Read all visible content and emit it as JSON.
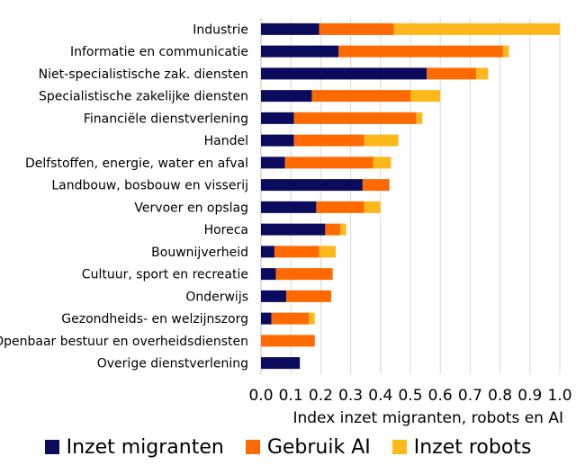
{
  "chart_data": {
    "type": "bar",
    "orientation": "horizontal",
    "stacked": true,
    "xlabel": "Index inzet migranten, robots en AI",
    "xlim": [
      0,
      1.0
    ],
    "xticks": [
      "0.0",
      "0.1",
      "0.2",
      "0.3",
      "0.4",
      "0.5",
      "0.6",
      "0.7",
      "0.8",
      "0.9",
      "1.0"
    ],
    "grid": true,
    "legend_position": "bottom",
    "categories": [
      "Industrie",
      "Informatie en communicatie",
      "Niet-specialistische zak. diensten",
      "Specialistische zakelijke diensten",
      "Financiële dienstverlening",
      "Handel",
      "Delfstoffen, energie, water en afval",
      "Landbouw, bosbouw en visserij",
      "Vervoer en opslag",
      "Horeca",
      "Bouwnijverheid",
      "Cultuur, sport en recreatie",
      "Onderwijs",
      "Gezondheids- en welzijnszorg",
      "Openbaar bestuur en overheidsdiensten",
      "Overige dienstverlening"
    ],
    "series": [
      {
        "name": "Inzet migranten",
        "color": "#0b0b5e",
        "values": [
          0.195,
          0.26,
          0.555,
          0.17,
          0.11,
          0.11,
          0.08,
          0.34,
          0.185,
          0.215,
          0.045,
          0.05,
          0.085,
          0.035,
          0.0,
          0.13
        ]
      },
      {
        "name": "Gebruik AI",
        "color": "#ff6a00",
        "values": [
          0.25,
          0.55,
          0.165,
          0.33,
          0.41,
          0.235,
          0.295,
          0.09,
          0.16,
          0.05,
          0.15,
          0.19,
          0.15,
          0.125,
          0.18,
          0.0
        ]
      },
      {
        "name": "Inzet robots",
        "color": "#ffb81c",
        "values": [
          0.555,
          0.02,
          0.04,
          0.1,
          0.02,
          0.115,
          0.06,
          0.0,
          0.055,
          0.02,
          0.055,
          0.0,
          0.0,
          0.02,
          0.0,
          0.0
        ]
      }
    ]
  }
}
